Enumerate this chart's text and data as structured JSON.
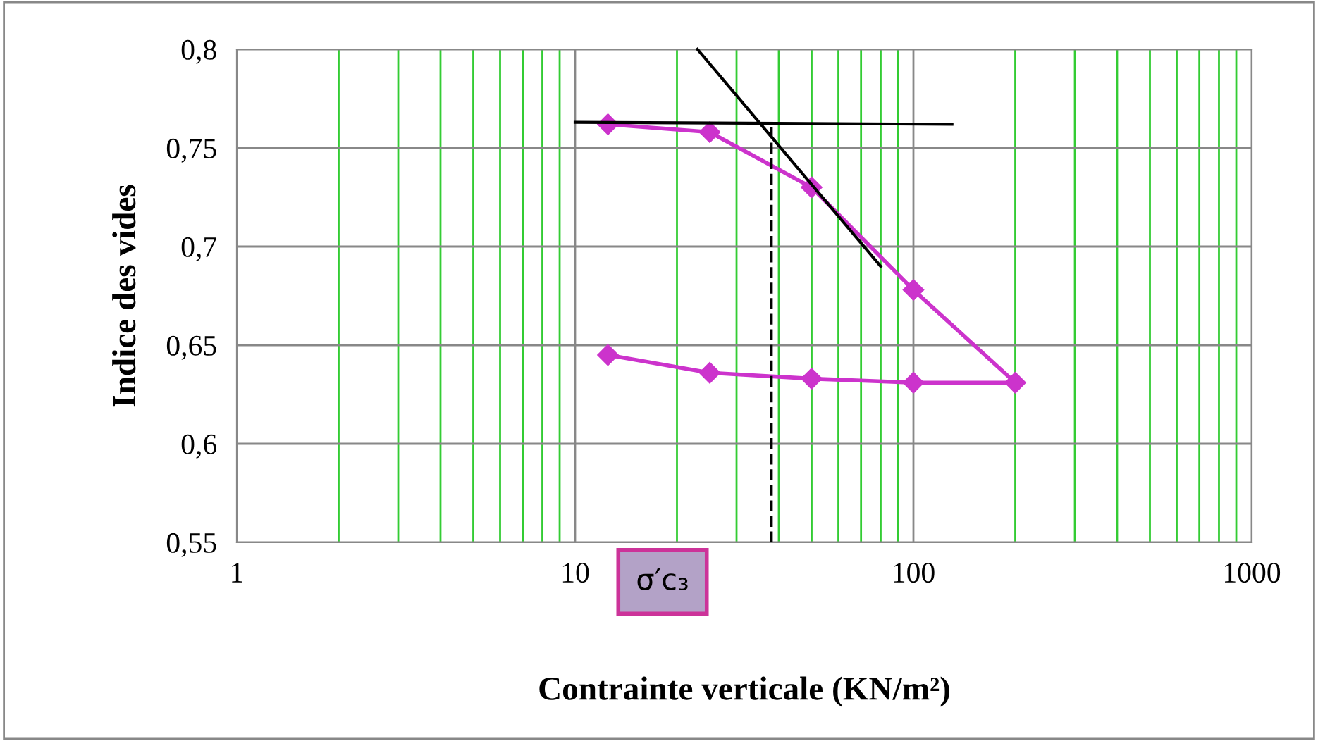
{
  "chart_data": {
    "type": "line",
    "xlabel": "Contrainte verticale (KN/m²)",
    "ylabel": "Indice des vides",
    "log": "x",
    "xlim": [
      1,
      1000
    ],
    "xticks": [
      1,
      {
        "value": 2,
        "label": null
      },
      {
        "value": 3,
        "label": null
      },
      {
        "value": 4,
        "label": null
      },
      {
        "value": 5,
        "label": null
      },
      {
        "value": 6,
        "label": null
      },
      {
        "value": 7,
        "label": null
      },
      {
        "value": 8,
        "label": null
      },
      {
        "value": 9,
        "label": null
      },
      10,
      {
        "value": 20,
        "label": null
      },
      {
        "value": 30,
        "label": null
      },
      {
        "value": 40,
        "label": null
      },
      {
        "value": 50,
        "label": null
      },
      {
        "value": 60,
        "label": null
      },
      {
        "value": 70,
        "label": null
      },
      {
        "value": 80,
        "label": null
      },
      {
        "value": 90,
        "label": null
      },
      100,
      {
        "value": 200,
        "label": null
      },
      {
        "value": 300,
        "label": null
      },
      {
        "value": 400,
        "label": null
      },
      {
        "value": 500,
        "label": null
      },
      {
        "value": 600,
        "label": null
      },
      {
        "value": 700,
        "label": null
      },
      {
        "value": 800,
        "label": null
      },
      {
        "value": 900,
        "label": null
      },
      1000
    ],
    "ylim": [
      0.55,
      0.8
    ],
    "yticks": [
      {
        "value": 0.55,
        "label": "0,55"
      },
      {
        "value": 0.6,
        "label": "0,6"
      },
      {
        "value": 0.65,
        "label": "0,65"
      },
      {
        "value": 0.7,
        "label": "0,7"
      },
      {
        "value": 0.75,
        "label": "0,75"
      },
      {
        "value": 0.8,
        "label": "0,8"
      }
    ],
    "grid": true,
    "series": [
      {
        "color": "#cc33cc",
        "marker": "diamond",
        "x": [
          12.5,
          25,
          50,
          100,
          200,
          100,
          50,
          25,
          12.5
        ],
        "values": [
          0.762,
          0.758,
          0.73,
          0.678,
          0.631,
          0.631,
          0.633,
          0.636,
          0.645
        ]
      },
      {
        "color": "#000000",
        "marker": "none",
        "x": [
          10,
          130
        ],
        "values": [
          0.763,
          0.762
        ]
      },
      {
        "color": "#000000",
        "marker": "none",
        "x": [
          23,
          80
        ],
        "values": [
          0.8,
          0.69
        ]
      },
      {
        "color": "#000000",
        "marker": "none",
        "line_style": "dashed",
        "x": [
          38,
          38
        ],
        "values": [
          0.55,
          0.763
        ]
      }
    ],
    "annotations": [
      "σ′c₃"
    ]
  }
}
